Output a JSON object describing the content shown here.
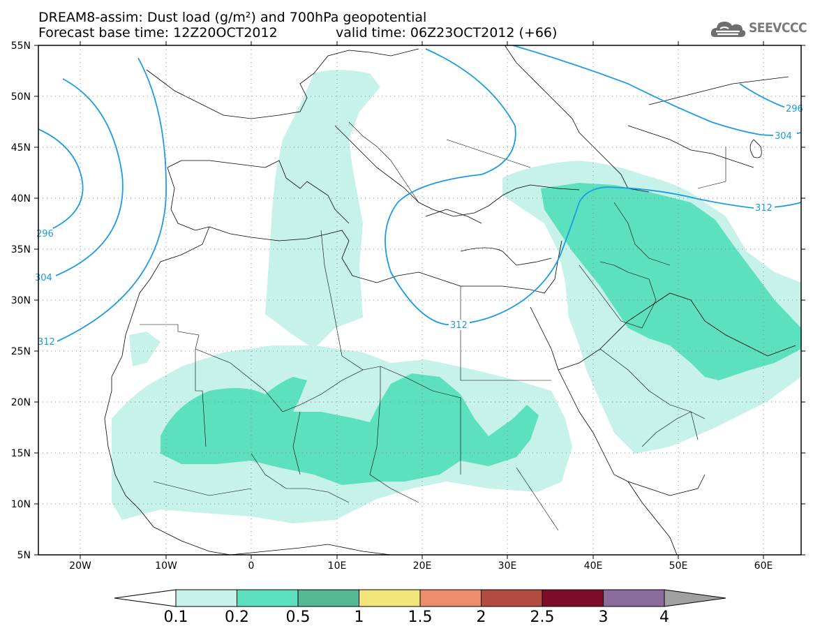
{
  "header": {
    "line1": "DREAM8-assim: Dust load (g/m²) and 700hPa geopotential",
    "line2": "Forecast base time: 12Z20OCT2012",
    "line3": "valid time: 06Z23OCT2012 (+66)"
  },
  "logo": {
    "text": "SEEVCCC",
    "icon": "cloud-logo-icon"
  },
  "map": {
    "lat_labels": [
      "55N",
      "50N",
      "45N",
      "40N",
      "35N",
      "30N",
      "25N",
      "20N",
      "15N",
      "10N",
      "5N"
    ],
    "lon_labels": [
      "20W",
      "10W",
      "0",
      "10E",
      "20E",
      "30E",
      "40E",
      "50E",
      "60E"
    ],
    "contour_labels": [
      "296",
      "304",
      "312",
      "312",
      "312",
      "296",
      "304"
    ],
    "colors": {
      "contour": "#1a9be6",
      "dust_01": "#c6f2ea",
      "dust_02": "#5ce0bd"
    }
  },
  "colorbar": {
    "ticks": [
      "0.1",
      "0.2",
      "0.5",
      "1",
      "1.5",
      "2",
      "2.5",
      "3",
      "4"
    ],
    "colors": [
      "#c6f2ea",
      "#5ce0bd",
      "#55b995",
      "#f2e67a",
      "#ec8c6a",
      "#b24c40",
      "#7d0b2a",
      "#8c6a9c",
      "#a0a0a0"
    ]
  }
}
